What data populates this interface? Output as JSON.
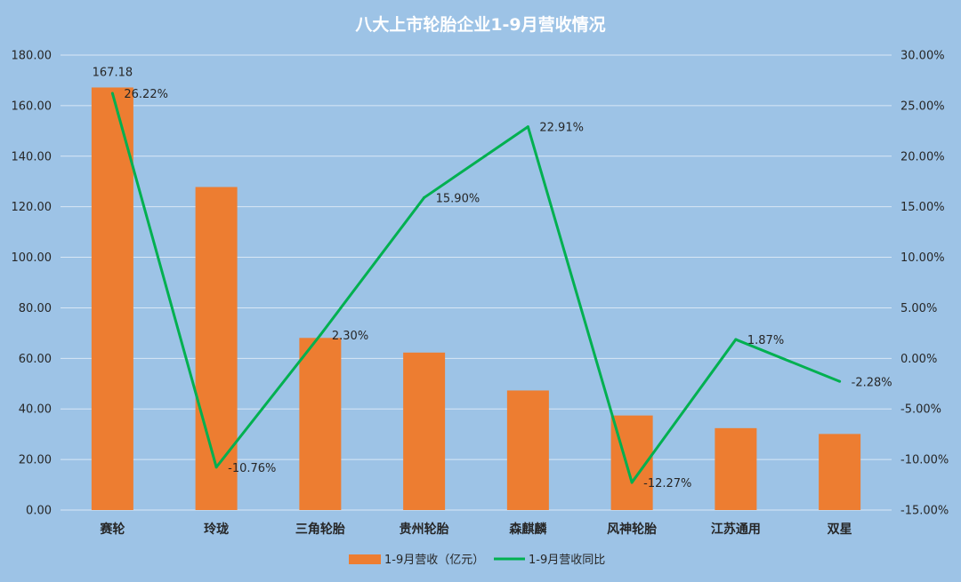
{
  "chart_data": {
    "type": "bar",
    "title": "八大上市轮胎企业1-9月营收情况",
    "categories": [
      "赛轮",
      "玲珑",
      "三角轮胎",
      "贵州轮胎",
      "森麒麟",
      "风神轮胎",
      "江苏通用",
      "双星"
    ],
    "series": [
      {
        "name": "1-9月营收（亿元）",
        "type": "bar",
        "axis": "left",
        "color": "#ed7d31",
        "values": [
          167.18,
          127.8,
          68.1,
          62.3,
          47.3,
          37.4,
          32.4,
          30.1
        ],
        "data_labels": [
          "167.18",
          "",
          "",
          "",
          "",
          "",
          "",
          ""
        ]
      },
      {
        "name": "1-9月营收同比",
        "type": "line",
        "axis": "right",
        "color": "#00b050",
        "values": [
          26.22,
          -10.76,
          2.3,
          15.9,
          22.91,
          -12.27,
          1.87,
          -2.28
        ],
        "data_labels": [
          "26.22%",
          "-10.76%",
          "2.30%",
          "15.90%",
          "22.91%",
          "-12.27%",
          "1.87%",
          "-2.28%"
        ]
      }
    ],
    "y_left": {
      "min": 0,
      "max": 180,
      "step": 20,
      "tick_labels": [
        "0.00",
        "20.00",
        "40.00",
        "60.00",
        "80.00",
        "100.00",
        "120.00",
        "140.00",
        "160.00",
        "180.00"
      ]
    },
    "y_right": {
      "min": -15,
      "max": 30,
      "step": 5,
      "tick_labels": [
        "-15.00%",
        "-10.00%",
        "-5.00%",
        "0.00%",
        "5.00%",
        "10.00%",
        "15.00%",
        "20.00%",
        "25.00%",
        "30.00%"
      ]
    },
    "grid": true,
    "legend": "bottom",
    "colors": {
      "background": "#9dc3e6",
      "gridline": "#d9e7f5",
      "title": "#ffffff",
      "text": "#262626"
    }
  }
}
